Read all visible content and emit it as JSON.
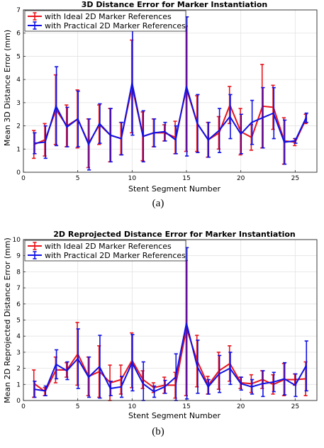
{
  "chart_data": [
    {
      "type": "line",
      "title": "3D Distance Error for Marker Instantiation",
      "xlabel": "Stent Segment Number",
      "ylabel": "Mean 3D Distance Error (mm)",
      "caption": "(a)",
      "xlim": [
        0,
        27
      ],
      "ylim": [
        0,
        7
      ],
      "xticks": [
        0,
        5,
        10,
        15,
        20,
        25
      ],
      "yticks": [
        0,
        1,
        2,
        3,
        4,
        5,
        6,
        7
      ],
      "grid": true,
      "legend": "top-left",
      "x": [
        1,
        2,
        3,
        4,
        5,
        6,
        7,
        8,
        9,
        10,
        11,
        12,
        13,
        14,
        15,
        16,
        17,
        18,
        19,
        20,
        21,
        22,
        23,
        24,
        25,
        26
      ],
      "series": [
        {
          "name": "with Ideal 2D Marker References",
          "color": "#e8141b",
          "values": [
            1.2,
            1.4,
            2.7,
            2.0,
            2.3,
            1.25,
            2.05,
            1.6,
            1.45,
            3.7,
            1.55,
            1.7,
            1.7,
            1.5,
            3.6,
            2.1,
            1.4,
            1.7,
            2.9,
            1.75,
            1.5,
            2.85,
            2.8,
            1.35,
            1.3,
            2.3
          ],
          "err": [
            0.6,
            0.7,
            1.5,
            0.9,
            1.25,
            1.05,
            0.85,
            1.15,
            0.7,
            2.0,
            1.05,
            0.6,
            0.35,
            0.7,
            2.7,
            1.2,
            0.75,
            0.7,
            0.8,
            1.0,
            0.55,
            1.8,
            0.95,
            1.0,
            0.15,
            0.2
          ]
        },
        {
          "name": "with Practical 2D Marker References",
          "color": "#1010e6",
          "values": [
            1.25,
            1.3,
            2.85,
            1.95,
            2.3,
            1.2,
            2.1,
            1.6,
            1.45,
            3.85,
            1.55,
            1.7,
            1.75,
            1.4,
            3.7,
            2.1,
            1.4,
            1.8,
            2.4,
            1.65,
            2.15,
            2.35,
            2.55,
            1.3,
            1.35,
            2.35
          ],
          "err": [
            0.45,
            0.7,
            1.7,
            0.85,
            1.2,
            1.1,
            0.85,
            1.15,
            0.7,
            2.25,
            1.1,
            0.6,
            0.4,
            0.6,
            3.0,
            1.25,
            0.75,
            0.95,
            0.95,
            0.85,
            0.95,
            1.3,
            1.1,
            0.95,
            0.1,
            0.2
          ]
        }
      ]
    },
    {
      "type": "line",
      "title": "2D Reprojected Distance Error for Marker Instantiation",
      "xlabel": "Stent Segment Number",
      "ylabel": "Mean 2D Reprojected Distance Error (mm)",
      "caption": "(b)",
      "xlim": [
        0,
        27
      ],
      "ylim": [
        0,
        10
      ],
      "xticks": [
        0,
        5,
        10,
        15,
        20,
        25
      ],
      "yticks": [
        0,
        1,
        2,
        3,
        4,
        5,
        6,
        7,
        8,
        9,
        10
      ],
      "grid": true,
      "legend": "top-left",
      "x": [
        1,
        2,
        3,
        4,
        5,
        6,
        7,
        8,
        9,
        10,
        11,
        12,
        13,
        14,
        15,
        16,
        17,
        18,
        19,
        20,
        21,
        22,
        23,
        24,
        25,
        26
      ],
      "series": [
        {
          "name": "with Ideal 2D Marker References",
          "color": "#e8141b",
          "values": [
            1.05,
            0.55,
            1.9,
            1.9,
            2.9,
            1.5,
            1.8,
            1.1,
            1.3,
            2.5,
            1.3,
            0.8,
            0.95,
            0.95,
            4.5,
            2.45,
            0.95,
            1.85,
            2.3,
            1.1,
            1.05,
            1.3,
            1.0,
            1.3,
            1.3,
            1.35
          ],
          "err": [
            0.85,
            0.25,
            0.8,
            0.45,
            1.95,
            1.2,
            1.6,
            1.1,
            0.9,
            1.7,
            0.55,
            0.3,
            0.5,
            0.8,
            4.2,
            1.6,
            0.55,
            1.15,
            1.1,
            0.35,
            0.55,
            0.55,
            0.6,
            1.0,
            0.35,
            1.05
          ]
        },
        {
          "name": "with Practical 2D Marker References",
          "color": "#1010e6",
          "values": [
            0.7,
            0.6,
            2.25,
            1.85,
            2.6,
            1.45,
            2.1,
            0.75,
            0.85,
            2.35,
            1.05,
            0.55,
            0.85,
            1.45,
            4.8,
            2.1,
            0.85,
            1.65,
            2.0,
            1.05,
            0.85,
            1.05,
            1.15,
            1.35,
            0.95,
            2.15
          ],
          "err": [
            0.5,
            0.3,
            0.9,
            0.55,
            1.85,
            1.25,
            1.95,
            0.45,
            0.65,
            1.75,
            1.35,
            0.35,
            0.4,
            1.45,
            4.7,
            1.65,
            0.45,
            1.15,
            1.0,
            0.4,
            0.45,
            0.8,
            0.6,
            1.0,
            0.7,
            1.55
          ]
        }
      ]
    }
  ]
}
